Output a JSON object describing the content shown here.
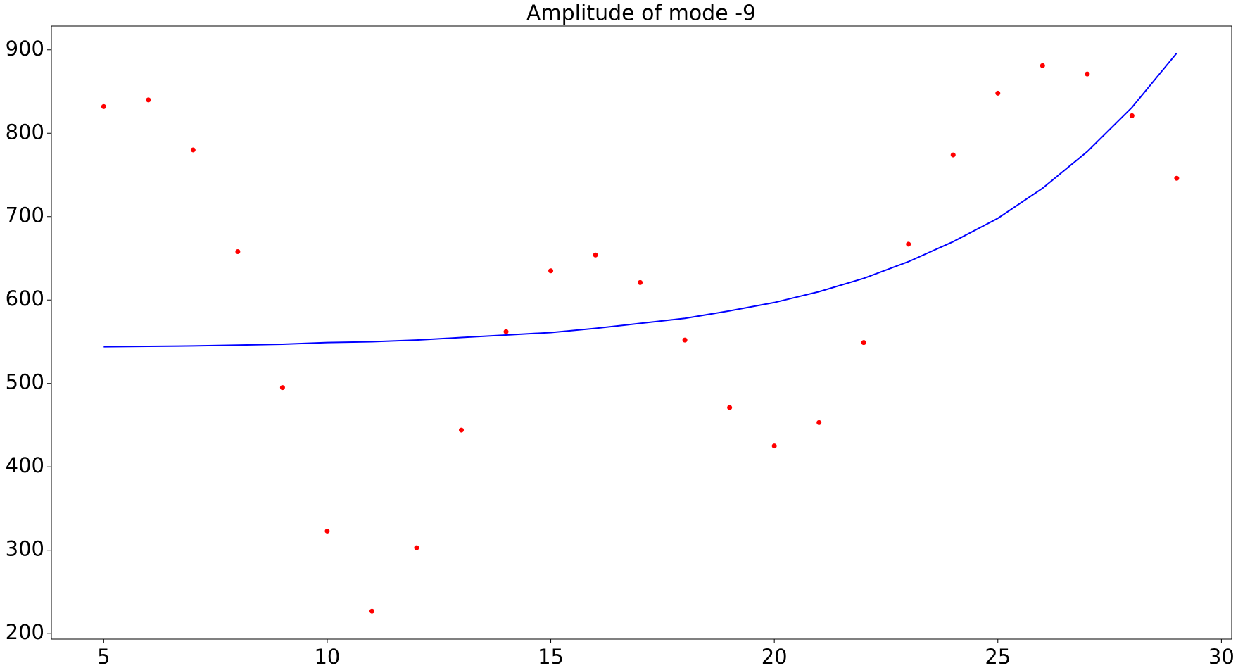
{
  "chart_data": {
    "type": "scatter",
    "title": "Amplitude of mode -9",
    "x": [
      5,
      6,
      7,
      8,
      9,
      10,
      11,
      12,
      13,
      14,
      15,
      16,
      17,
      18,
      19,
      20,
      21,
      22,
      23,
      24,
      25,
      26,
      27,
      28,
      29
    ],
    "series": [
      {
        "style": "markers",
        "color": "#ff0000",
        "values": [
          832,
          840,
          780,
          658,
          495,
          323,
          227,
          303,
          444,
          562,
          635,
          654,
          621,
          552,
          471,
          425,
          453,
          549,
          667,
          774,
          848,
          881,
          871,
          821,
          746
        ]
      },
      {
        "style": "line",
        "color": "#0000ff",
        "values": [
          544,
          544.5,
          545,
          546,
          547,
          549,
          550,
          552,
          555,
          558,
          561,
          566,
          572,
          578,
          587,
          597,
          610,
          626,
          646,
          670,
          698,
          734,
          778,
          831,
          896
        ]
      }
    ],
    "xlim": [
      3.83,
      30.23
    ],
    "xticks": [
      5,
      10,
      15,
      20,
      25,
      30
    ],
    "ylim": [
      193.4,
      928.5
    ],
    "yticks": [
      200,
      300,
      400,
      500,
      600,
      700,
      800,
      900
    ],
    "grid": false
  }
}
